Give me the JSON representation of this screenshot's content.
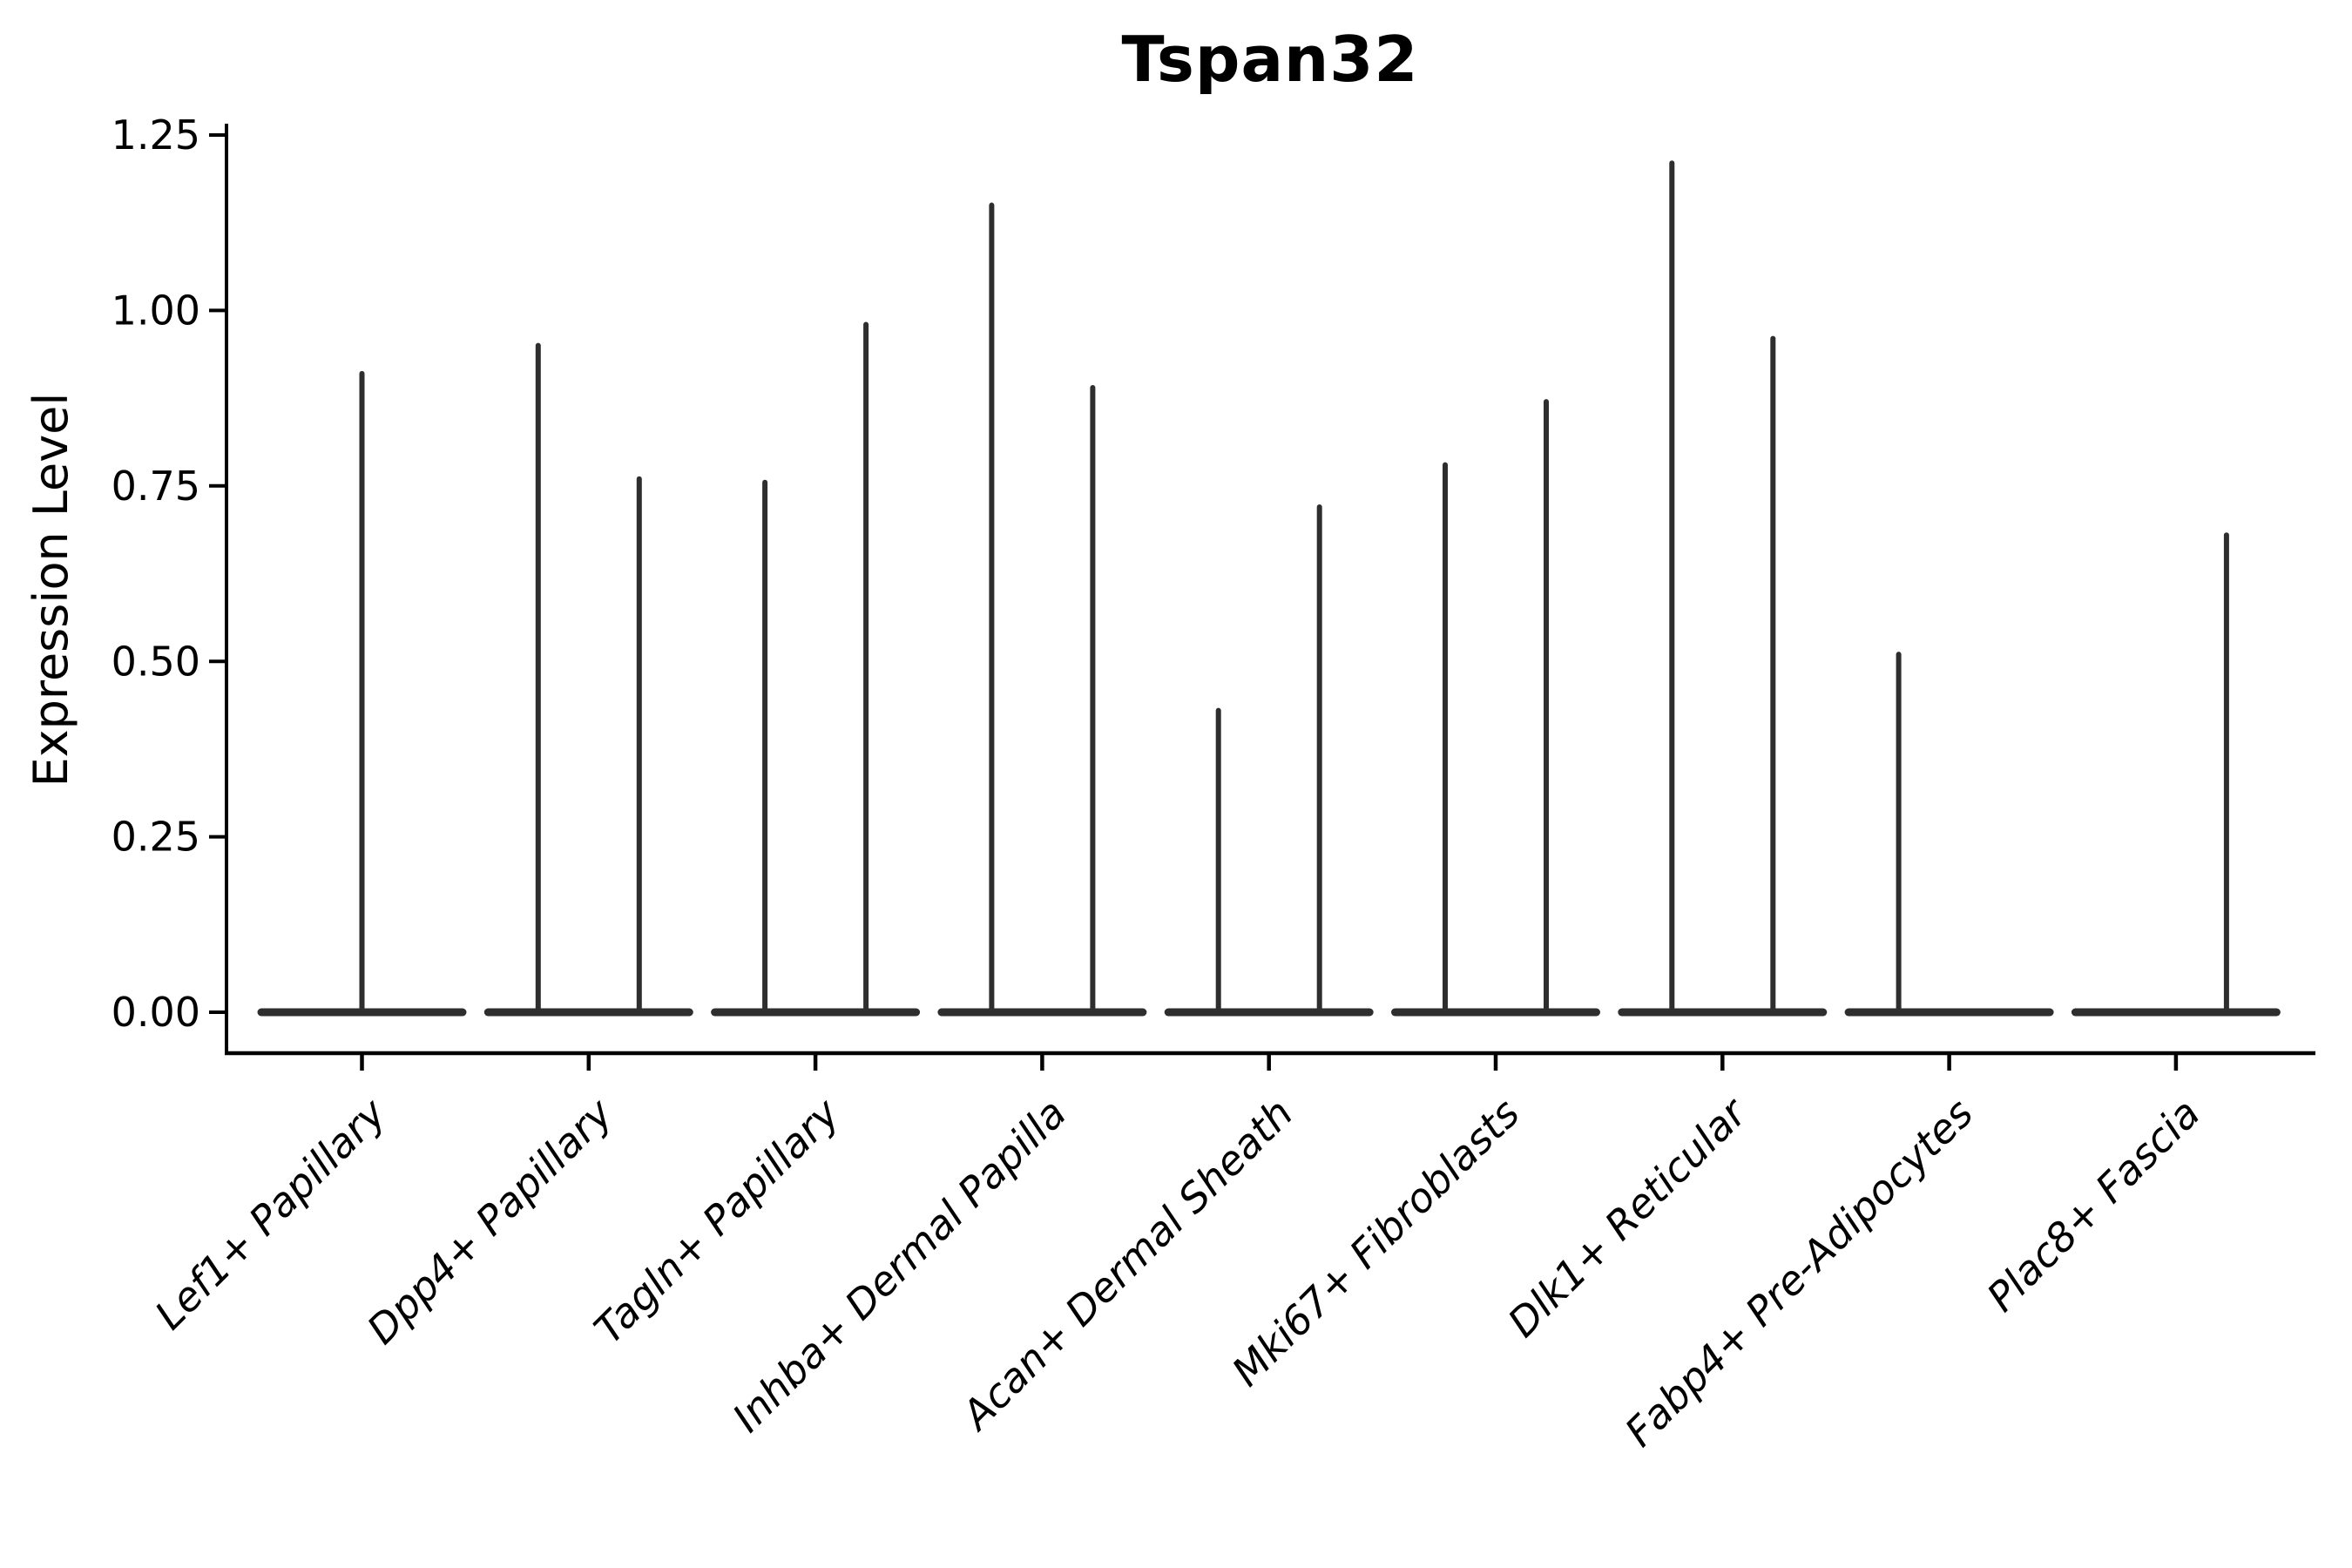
{
  "title": "Tspan32",
  "y_axis": {
    "label": "Expression Level",
    "tick_labels": [
      "0.00",
      "0.25",
      "0.50",
      "0.75",
      "1.00",
      "1.25"
    ]
  },
  "colors": {
    "axis": "#000000",
    "text": "#000000",
    "violin": "#2e2e2e",
    "background": "#ffffff"
  },
  "chart_data": {
    "type": "violin",
    "title": "Tspan32",
    "xlabel": "",
    "ylabel": "Expression Level",
    "ylim": [
      0,
      1.25
    ],
    "y_ticks": [
      0,
      0.25,
      0.5,
      0.75,
      1.0,
      1.25
    ],
    "grid": false,
    "legend": "none",
    "categories": [
      "Lef1+ Papillary",
      "Dpp4+ Papillary",
      "Tagln+ Papillary",
      "Inhba+ Dermal Papilla",
      "Acan+ Dermal Sheath",
      "Mki67+ Fibroblasts",
      "Dlk1+ Reticular",
      "Fabp4+ Pre-Adipocytes",
      "Plac8+ Fascia"
    ],
    "series": [
      {
        "category": "Lef1+ Papillary",
        "violins": [
          {
            "position": "center",
            "min": 0,
            "max_expression": 0.91
          }
        ]
      },
      {
        "category": "Dpp4+ Papillary",
        "violins": [
          {
            "position": "left",
            "min": 0,
            "max_expression": 0.95
          },
          {
            "position": "right",
            "min": 0,
            "max_expression": 0.76
          }
        ]
      },
      {
        "category": "Tagln+ Papillary",
        "violins": [
          {
            "position": "left",
            "min": 0,
            "max_expression": 0.755
          },
          {
            "position": "right",
            "min": 0,
            "max_expression": 0.98
          }
        ]
      },
      {
        "category": "Inhba+ Dermal Papilla",
        "violins": [
          {
            "position": "left",
            "min": 0,
            "max_expression": 1.15
          },
          {
            "position": "right",
            "min": 0,
            "max_expression": 0.89
          }
        ]
      },
      {
        "category": "Acan+ Dermal Sheath",
        "violins": [
          {
            "position": "left",
            "min": 0,
            "max_expression": 0.43
          },
          {
            "position": "right",
            "min": 0,
            "max_expression": 0.72
          }
        ]
      },
      {
        "category": "Mki67+ Fibroblasts",
        "violins": [
          {
            "position": "left",
            "min": 0,
            "max_expression": 0.78
          },
          {
            "position": "right",
            "min": 0,
            "max_expression": 0.87
          }
        ]
      },
      {
        "category": "Dlk1+ Reticular",
        "violins": [
          {
            "position": "left",
            "min": 0,
            "max_expression": 1.21
          },
          {
            "position": "right",
            "min": 0,
            "max_expression": 0.96
          }
        ]
      },
      {
        "category": "Fabp4+ Pre-Adipocytes",
        "violins": [
          {
            "position": "left",
            "min": 0,
            "max_expression": 0.51
          }
        ]
      },
      {
        "category": "Plac8+ Fascia",
        "violins": [
          {
            "position": "right",
            "min": 0,
            "max_expression": 0.68
          }
        ]
      }
    ]
  }
}
